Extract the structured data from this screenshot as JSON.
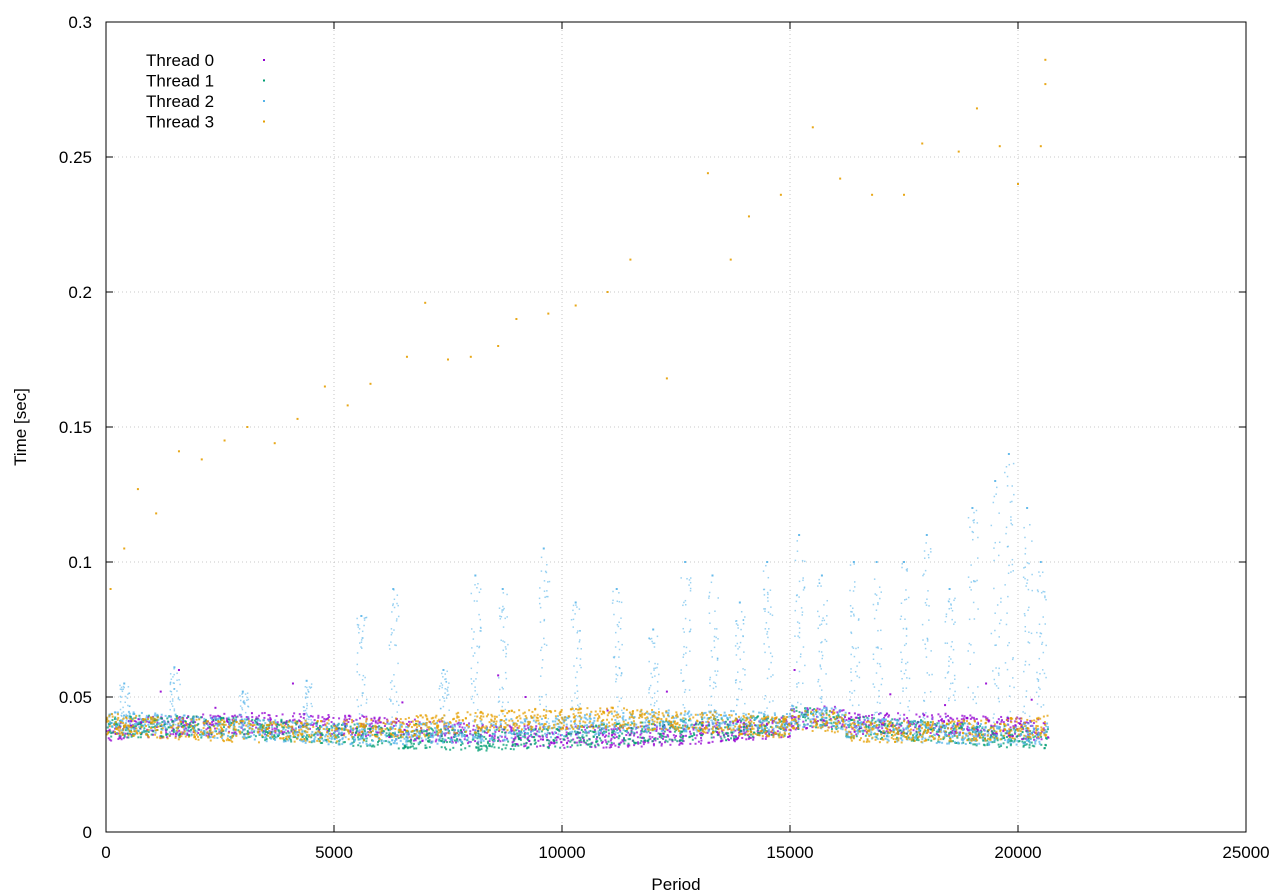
{
  "chart_data": {
    "type": "scatter",
    "title": "",
    "xlabel": "Period",
    "ylabel": "Time [sec]",
    "xlim": [
      0,
      25000
    ],
    "ylim": [
      0,
      0.3
    ],
    "xticks": [
      0,
      5000,
      10000,
      15000,
      20000,
      25000
    ],
    "yticks": [
      0,
      0.05,
      0.1,
      0.15,
      0.2,
      0.25,
      0.3
    ],
    "xtick_labels": [
      "0",
      "5000",
      "10000",
      "15000",
      "20000",
      "25000"
    ],
    "ytick_labels": [
      "0",
      "0.05",
      "0.1",
      "0.15",
      "0.2",
      "0.25",
      "0.3"
    ],
    "grid": true,
    "legend_position": "top-left",
    "x_max_period": 20650,
    "series": [
      {
        "name": "Thread 0",
        "color": "#9400d3",
        "typical": 0.038,
        "samples": [
          [
            500,
            0.041
          ],
          [
            1200,
            0.052
          ],
          [
            1600,
            0.06
          ],
          [
            2400,
            0.046
          ],
          [
            3200,
            0.044
          ],
          [
            4100,
            0.055
          ],
          [
            5200,
            0.036
          ],
          [
            6500,
            0.048
          ],
          [
            7800,
            0.037
          ],
          [
            8600,
            0.058
          ],
          [
            9200,
            0.05
          ],
          [
            10100,
            0.036
          ],
          [
            11000,
            0.045
          ],
          [
            12300,
            0.052
          ],
          [
            13400,
            0.037
          ],
          [
            14200,
            0.035
          ],
          [
            15100,
            0.06
          ],
          [
            16300,
            0.044
          ],
          [
            17200,
            0.051
          ],
          [
            18400,
            0.047
          ],
          [
            19300,
            0.055
          ],
          [
            20300,
            0.049
          ]
        ]
      },
      {
        "name": "Thread 1",
        "color": "#009e73",
        "typical": 0.037,
        "samples": [
          [
            700,
            0.04
          ],
          [
            1900,
            0.042
          ],
          [
            2800,
            0.038
          ],
          [
            3500,
            0.037
          ],
          [
            4700,
            0.039
          ],
          [
            5900,
            0.036
          ],
          [
            6800,
            0.04
          ],
          [
            8200,
            0.035
          ],
          [
            9500,
            0.038
          ],
          [
            10700,
            0.037
          ],
          [
            11800,
            0.039
          ],
          [
            12900,
            0.036
          ],
          [
            13600,
            0.034
          ],
          [
            14600,
            0.036
          ],
          [
            15800,
            0.041
          ],
          [
            17000,
            0.037
          ],
          [
            18100,
            0.038
          ],
          [
            19100,
            0.039
          ],
          [
            20100,
            0.037
          ]
        ]
      },
      {
        "name": "Thread 2",
        "color": "#56b4e9",
        "typical": 0.039,
        "samples": [
          [
            400,
            0.055
          ],
          [
            1500,
            0.061
          ],
          [
            3000,
            0.052
          ],
          [
            4400,
            0.056
          ],
          [
            5600,
            0.08
          ],
          [
            6300,
            0.09
          ],
          [
            7400,
            0.06
          ],
          [
            8100,
            0.095
          ],
          [
            8700,
            0.09
          ],
          [
            9600,
            0.105
          ],
          [
            10300,
            0.085
          ],
          [
            11200,
            0.09
          ],
          [
            12000,
            0.075
          ],
          [
            12700,
            0.1
          ],
          [
            13300,
            0.095
          ],
          [
            13900,
            0.085
          ],
          [
            14500,
            0.1
          ],
          [
            15200,
            0.11
          ],
          [
            15700,
            0.095
          ],
          [
            16400,
            0.1
          ],
          [
            16900,
            0.1
          ],
          [
            17500,
            0.1
          ],
          [
            18000,
            0.11
          ],
          [
            18500,
            0.09
          ],
          [
            19000,
            0.12
          ],
          [
            19500,
            0.13
          ],
          [
            19800,
            0.14
          ],
          [
            20200,
            0.12
          ],
          [
            20500,
            0.1
          ]
        ]
      },
      {
        "name": "Thread 3",
        "color": "#e69f00",
        "typical": 0.04,
        "samples": [
          [
            100,
            0.09
          ],
          [
            400,
            0.105
          ],
          [
            700,
            0.127
          ],
          [
            1100,
            0.118
          ],
          [
            1600,
            0.141
          ],
          [
            2100,
            0.138
          ],
          [
            2600,
            0.145
          ],
          [
            3100,
            0.15
          ],
          [
            3700,
            0.144
          ],
          [
            4200,
            0.153
          ],
          [
            4800,
            0.165
          ],
          [
            5300,
            0.158
          ],
          [
            5800,
            0.166
          ],
          [
            6600,
            0.176
          ],
          [
            7000,
            0.196
          ],
          [
            7500,
            0.175
          ],
          [
            8000,
            0.176
          ],
          [
            8600,
            0.18
          ],
          [
            9000,
            0.19
          ],
          [
            9700,
            0.192
          ],
          [
            10300,
            0.195
          ],
          [
            11000,
            0.2
          ],
          [
            11500,
            0.212
          ],
          [
            12300,
            0.168
          ],
          [
            13200,
            0.244
          ],
          [
            13700,
            0.212
          ],
          [
            14100,
            0.228
          ],
          [
            14800,
            0.236
          ],
          [
            15500,
            0.261
          ],
          [
            16100,
            0.242
          ],
          [
            16800,
            0.236
          ],
          [
            17500,
            0.236
          ],
          [
            17900,
            0.255
          ],
          [
            18700,
            0.252
          ],
          [
            19100,
            0.268
          ],
          [
            19600,
            0.254
          ],
          [
            20000,
            0.24
          ],
          [
            20500,
            0.254
          ],
          [
            20600,
            0.286
          ],
          [
            20600,
            0.277
          ]
        ]
      }
    ]
  }
}
